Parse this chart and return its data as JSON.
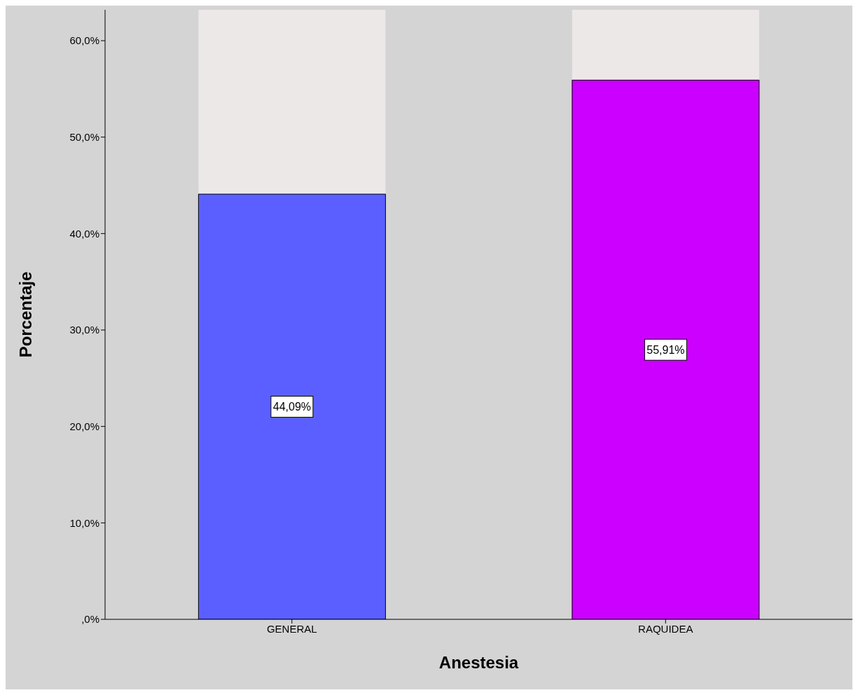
{
  "chart_data": {
    "type": "bar",
    "xlabel": "Anestesia",
    "ylabel": "Porcentaje",
    "categories": [
      "GENERAL",
      "RAQUIDEA"
    ],
    "values": [
      44.09,
      55.91
    ],
    "colors": [
      "#5b5fff",
      "#cc00ff"
    ],
    "value_labels": [
      "44,09%",
      "55,91%"
    ],
    "ylim": [
      0,
      63.2
    ],
    "yticks": [
      {
        "value": 0,
        "label": ",0%"
      },
      {
        "value": 10,
        "label": "10,0%"
      },
      {
        "value": 20,
        "label": "20,0%"
      },
      {
        "value": 30,
        "label": "30,0%"
      },
      {
        "value": 40,
        "label": "40,0%"
      },
      {
        "value": 50,
        "label": "50,0%"
      },
      {
        "value": 60,
        "label": "60,0%"
      }
    ],
    "grid": false
  }
}
